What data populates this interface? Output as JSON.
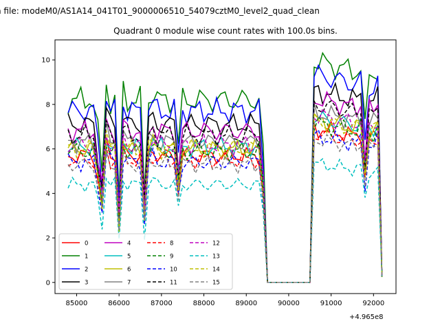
{
  "chart_data": {
    "type": "line",
    "suptitle": "n file: modeM0/AS1A14_041T01_9000006510_54079cztM0_level2_quad_clean",
    "title": "Quadrant 0 module wise count rates with 100.0s bins.",
    "xlabel": "",
    "ylabel": "",
    "x_offset_label": "+4.965e8",
    "x_tick_labels": [
      "85000",
      "86000",
      "87000",
      "88000",
      "89000",
      "90000",
      "91000",
      "92000"
    ],
    "y_tick_labels": [
      "0",
      "2",
      "4",
      "6",
      "8",
      "10"
    ],
    "xlim": [
      84490,
      92530
    ],
    "ylim": [
      -0.5,
      10.9
    ],
    "legend_position": "lower-left",
    "grid": false,
    "x_start": 84800,
    "x_step": 100,
    "gap_start": 89500,
    "gap_end": 90500,
    "x_end": 92200,
    "series": [
      {
        "name": "0",
        "color": "#ff0000",
        "dash": "solid",
        "base": 5.7
      },
      {
        "name": "1",
        "color": "#008000",
        "dash": "solid",
        "base": 8.2
      },
      {
        "name": "2",
        "color": "#0000ff",
        "dash": "solid",
        "base": 7.7
      },
      {
        "name": "3",
        "color": "#000000",
        "dash": "solid",
        "base": 7.1
      },
      {
        "name": "4",
        "color": "#bf00bf",
        "dash": "solid",
        "base": 6.8
      },
      {
        "name": "5",
        "color": "#00bfbf",
        "dash": "solid",
        "base": 6.1
      },
      {
        "name": "6",
        "color": "#bfbf00",
        "dash": "solid",
        "base": 6.0
      },
      {
        "name": "7",
        "color": "#808080",
        "dash": "solid",
        "base": 6.3
      },
      {
        "name": "8",
        "color": "#ff0000",
        "dash": "dashed",
        "base": 5.5
      },
      {
        "name": "9",
        "color": "#008000",
        "dash": "dashed",
        "base": 5.9
      },
      {
        "name": "10",
        "color": "#0000ff",
        "dash": "dashed",
        "base": 5.4
      },
      {
        "name": "11",
        "color": "#000000",
        "dash": "dashed",
        "base": 6.6
      },
      {
        "name": "12",
        "color": "#bf00bf",
        "dash": "dashed",
        "base": 6.2
      },
      {
        "name": "13",
        "color": "#00bfbf",
        "dash": "dashed",
        "base": 4.4
      },
      {
        "name": "14",
        "color": "#bfbf00",
        "dash": "dashed",
        "base": 6.0
      },
      {
        "name": "15",
        "color": "#808080",
        "dash": "dashed",
        "base": 5.3
      }
    ]
  }
}
